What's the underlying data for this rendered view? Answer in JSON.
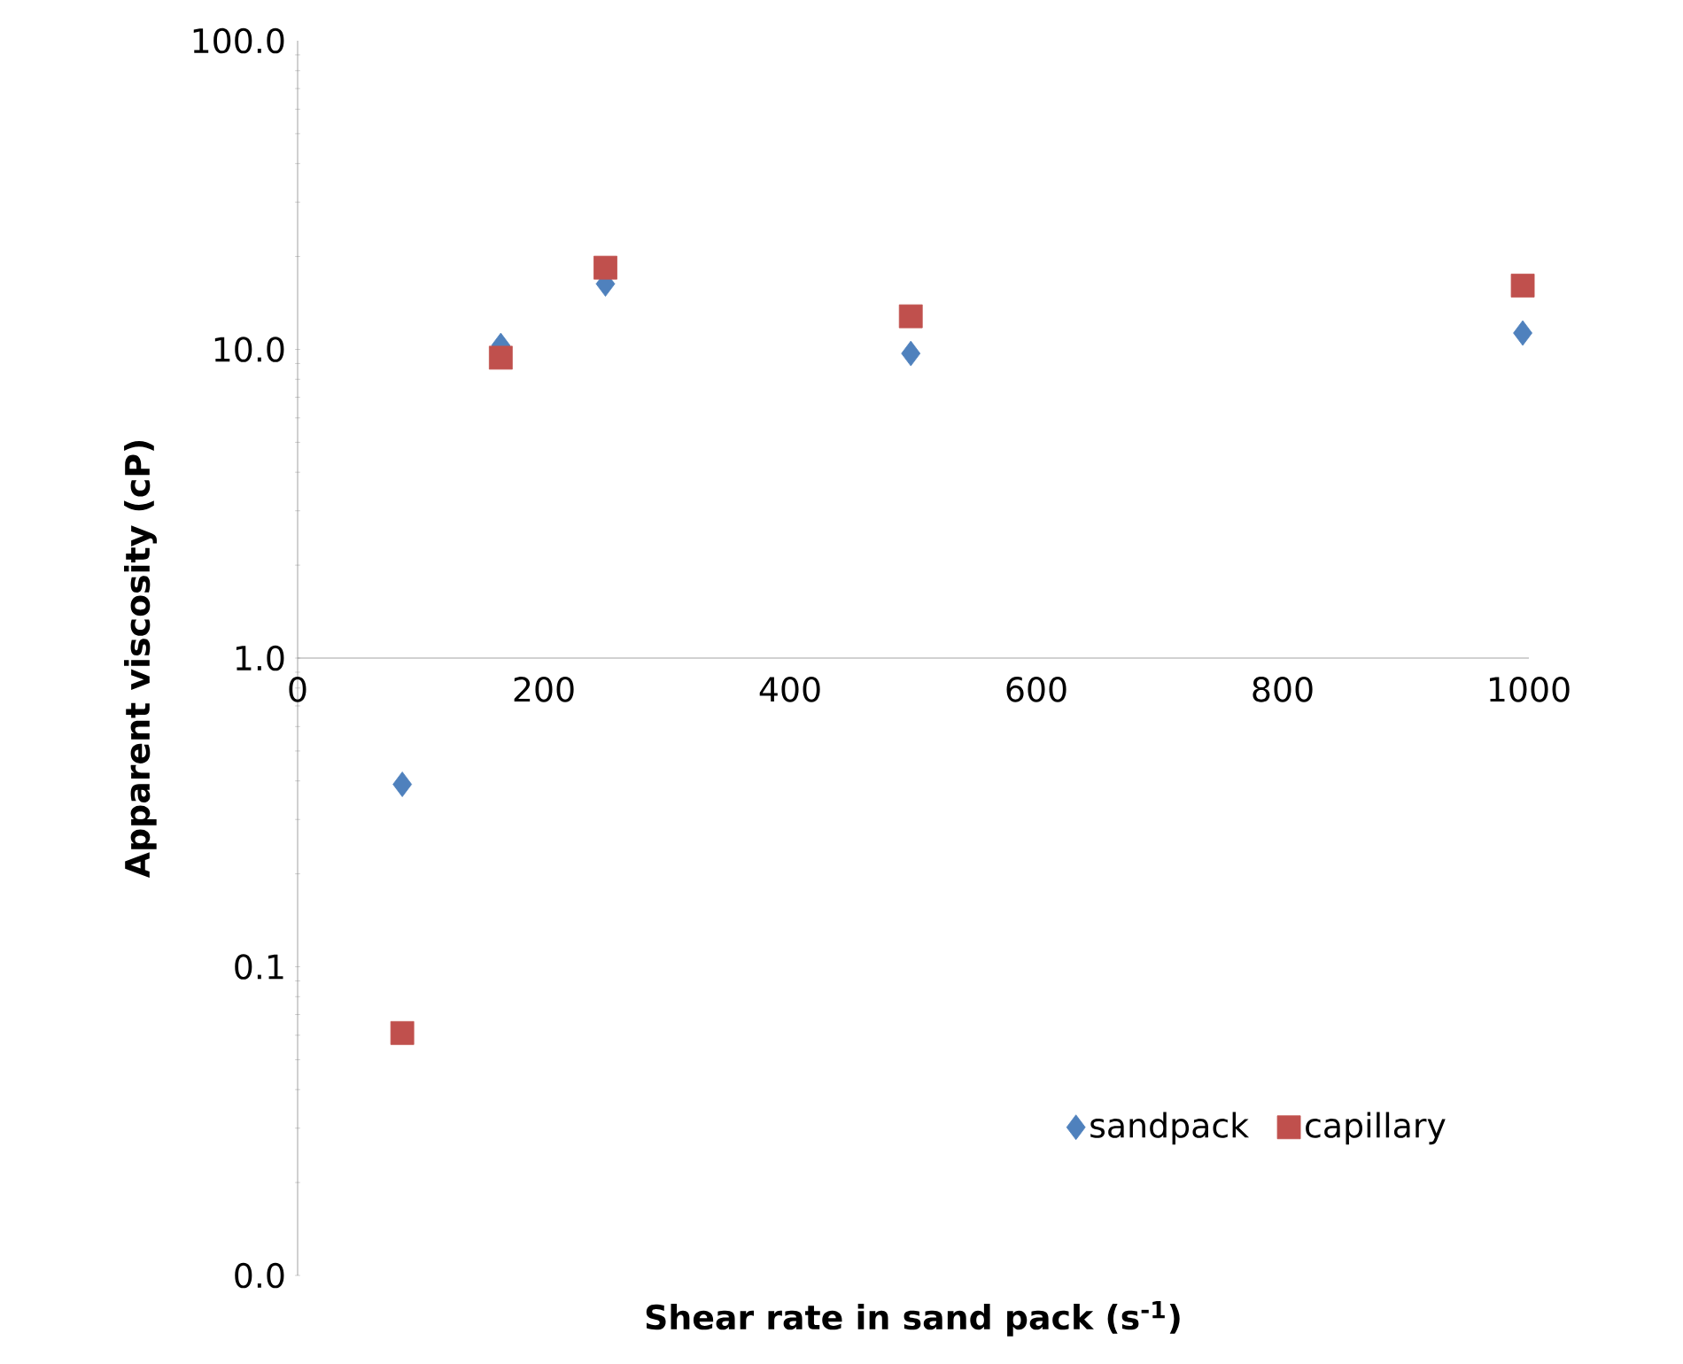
{
  "chart_data": {
    "type": "scatter",
    "xlabel": "Shear rate in sand pack (s$^{-1}$)",
    "ylabel": "Apparent viscosity (cP)",
    "log": "y",
    "grid": false,
    "legend": "bottom right",
    "xlim": [
      0,
      1000
    ],
    "xticks": [
      0,
      200,
      400,
      600,
      800,
      1000
    ],
    "ylim": [
      0.01,
      100
    ],
    "yticks": [
      {
        "value": 0.01,
        "label": "0.0"
      },
      {
        "value": 0.1,
        "label": "0.1"
      },
      {
        "value": 1,
        "label": "1.0"
      },
      {
        "value": 10,
        "label": "10.0"
      },
      {
        "value": 100,
        "label": "100.0"
      }
    ],
    "series": [
      {
        "name": "sandpack",
        "color": "#4f81bd",
        "marker": "diamond",
        "x": [
          85,
          165,
          250,
          498,
          995
        ],
        "values": [
          0.39,
          10.3,
          16.3,
          9.7,
          11.3
        ]
      },
      {
        "name": "capillary",
        "color": "#c0504d",
        "marker": "square",
        "x": [
          85,
          165,
          250,
          498,
          995
        ],
        "values": [
          0.061,
          9.4,
          18.4,
          12.8,
          16.1
        ]
      }
    ]
  }
}
